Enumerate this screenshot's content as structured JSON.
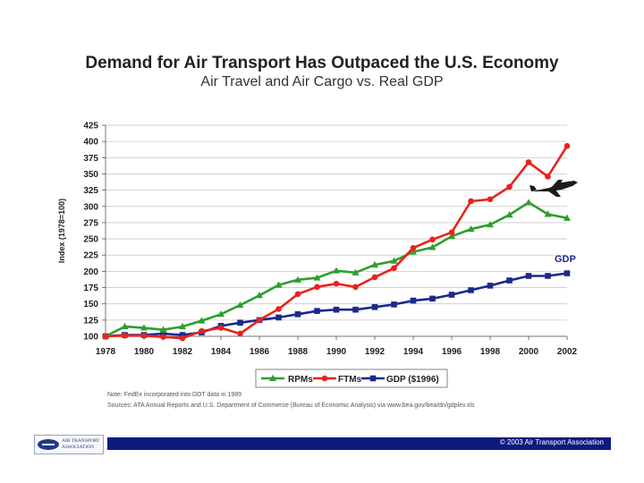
{
  "title": "Demand for Air Transport Has Outpaced the U.S. Economy",
  "subtitle": "Air Travel and Air Cargo vs. Real GDP",
  "note": "Note: FedEx incorporated into DOT data in 1989",
  "sources": "Sources: ATA Annual Reports and U.S. Department of Commerce (Bureau of Economic Analysis) via www.bea.gov/bea/dn/gdplev.xls",
  "footer": "© 2003 Air Transport Association",
  "logo": {
    "line1": "AIR TRANSPORT",
    "line2": "ASSOCIATION"
  },
  "colors": {
    "rpm": "#2e9e2e",
    "ftm": "#e8231c",
    "gdp": "#1a2a8c",
    "footer_bar": "#0d1a80"
  },
  "chart_data": {
    "type": "line",
    "title": "Demand for Air Transport Has Outpaced the U.S. Economy",
    "subtitle": "Air Travel and Air Cargo vs. Real GDP",
    "xlabel": "",
    "ylabel": "Index (1978=100)",
    "ylim": [
      100,
      425
    ],
    "yticks": [
      100,
      125,
      150,
      175,
      200,
      225,
      250,
      275,
      300,
      325,
      350,
      375,
      400,
      425
    ],
    "xlim": [
      1978,
      2002
    ],
    "xticks": [
      1978,
      1980,
      1982,
      1984,
      1986,
      1988,
      1990,
      1992,
      1994,
      1996,
      1998,
      2000,
      2002
    ],
    "grid": true,
    "legend_position": "bottom",
    "annotation": "GDP",
    "x": [
      1978,
      1979,
      1980,
      1981,
      1982,
      1983,
      1984,
      1985,
      1986,
      1987,
      1988,
      1989,
      1990,
      1991,
      1992,
      1993,
      1994,
      1995,
      1996,
      1997,
      1998,
      1999,
      2000,
      2001,
      2002
    ],
    "series": [
      {
        "name": "RPMs",
        "marker": "triangle",
        "values": [
          100,
          115,
          113,
          110,
          115,
          124,
          134,
          148,
          163,
          179,
          187,
          190,
          201,
          198,
          210,
          216,
          230,
          237,
          254,
          265,
          272,
          287,
          306,
          288,
          282
        ]
      },
      {
        "name": "FTMs",
        "marker": "circle",
        "values": [
          100,
          101,
          101,
          99,
          97,
          108,
          113,
          104,
          125,
          142,
          165,
          176,
          181,
          176,
          191,
          205,
          236,
          249,
          260,
          308,
          311,
          330,
          368,
          346,
          393
        ]
      },
      {
        "name": "GDP ($1996)",
        "marker": "square",
        "values": [
          100,
          102,
          102,
          104,
          102,
          106,
          116,
          121,
          125,
          129,
          134,
          139,
          141,
          141,
          145,
          149,
          155,
          158,
          164,
          171,
          178,
          186,
          193,
          193,
          197
        ]
      }
    ]
  }
}
